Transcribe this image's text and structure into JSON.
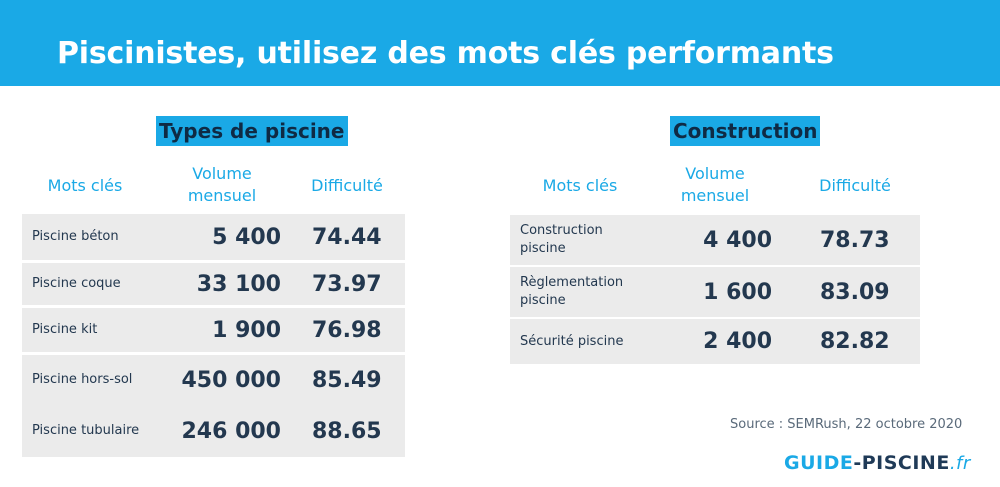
{
  "header": {
    "title": "Piscinistes, utilisez des mots clés performants"
  },
  "columns": {
    "keywords": "Mots clés",
    "volume_line1": "Volume",
    "volume_line2": "mensuel",
    "difficulty": "Difficulté"
  },
  "tables": [
    {
      "heading": "Types de piscine",
      "rows": [
        {
          "keyword": "Piscine béton",
          "volume": "5 400",
          "difficulty": "74.44"
        },
        {
          "keyword": "Piscine coque",
          "volume": "33 100",
          "difficulty": "73.97"
        },
        {
          "keyword": "Piscine kit",
          "volume": "1 900",
          "difficulty": "76.98"
        },
        {
          "keyword": "Piscine hors-sol",
          "volume": "450 000",
          "difficulty": "85.49"
        },
        {
          "keyword": "Piscine tubulaire",
          "volume": "246 000",
          "difficulty": "88.65"
        }
      ]
    },
    {
      "heading": "Construction",
      "rows": [
        {
          "keyword_line1": "Construction",
          "keyword_line2": "piscine",
          "volume": "4 400",
          "difficulty": "78.73"
        },
        {
          "keyword_line1": "Règlementation",
          "keyword_line2": "piscine",
          "volume": "1 600",
          "difficulty": "83.09"
        },
        {
          "keyword_line1": "Sécurité piscine",
          "keyword_line2": "",
          "volume": "2 400",
          "difficulty": "82.82"
        }
      ]
    }
  ],
  "source": "Source : SEMRush, 22 octobre 2020",
  "logo": {
    "part1": "GUIDE",
    "part2": "-PISCINE",
    "part3": ".fr"
  },
  "colors": {
    "accent": "#1aa9e6",
    "text_dark": "#23384f",
    "row_bg": "#ebebeb"
  }
}
